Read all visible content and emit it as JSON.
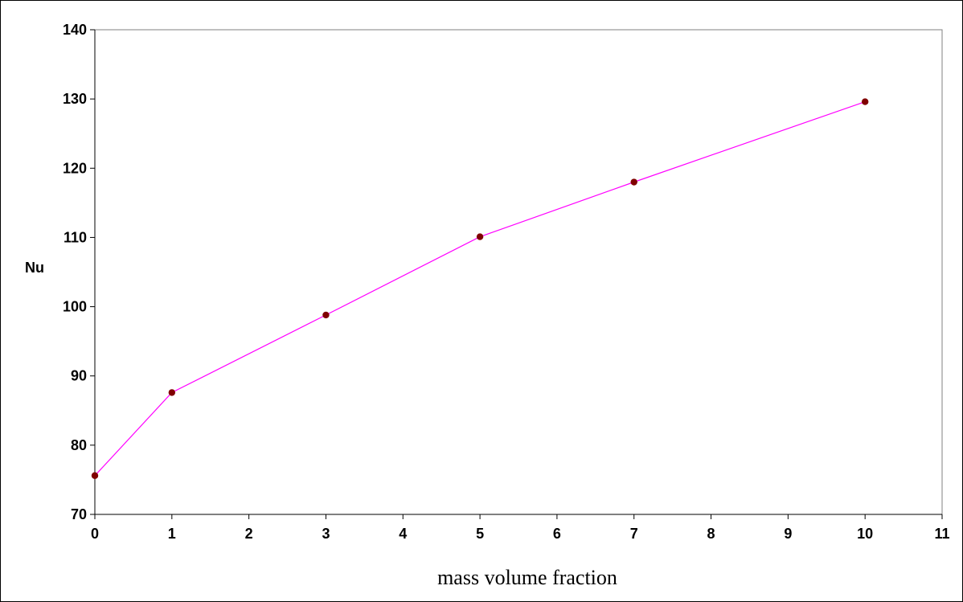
{
  "chart_data": {
    "type": "line",
    "xlabel": "mass volume fraction",
    "ylabel": "Nu",
    "xlim": [
      0,
      11
    ],
    "ylim": [
      70,
      140
    ],
    "x_ticks": [
      0,
      1,
      2,
      3,
      4,
      5,
      6,
      7,
      8,
      9,
      10,
      11
    ],
    "y_ticks": [
      70,
      80,
      90,
      100,
      110,
      120,
      130,
      140
    ],
    "grid": false,
    "legend": "none",
    "series": [
      {
        "x": [
          0,
          1,
          3,
          5,
          7,
          10
        ],
        "values": [
          75.6,
          87.6,
          98.8,
          110.1,
          118.0,
          129.6
        ],
        "line_color": "#ff00ff",
        "marker_color": "#800000"
      }
    ]
  }
}
